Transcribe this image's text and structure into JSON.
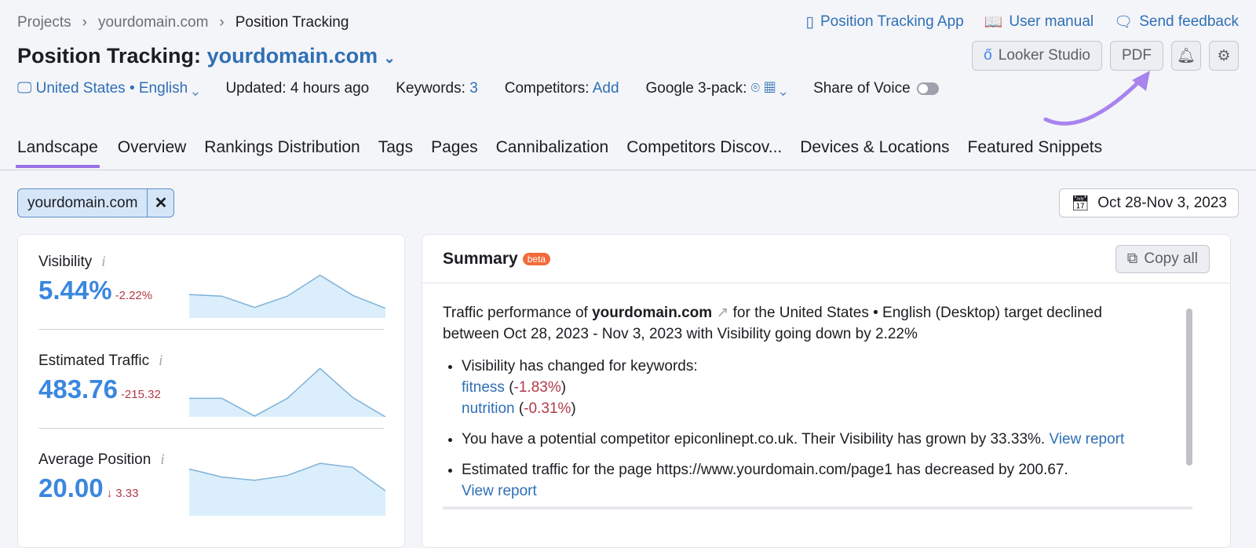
{
  "breadcrumb": [
    "Projects",
    "yourdomain.com",
    "Position Tracking"
  ],
  "header": {
    "title_prefix": "Position Tracking:",
    "domain": "yourdomain.com"
  },
  "top_links": {
    "app": "Position Tracking App",
    "manual": "User manual",
    "feedback": "Send feedback"
  },
  "buttons": {
    "looker": "Looker Studio",
    "pdf": "PDF"
  },
  "meta": {
    "location": "United States • English",
    "updated": "Updated: 4 hours ago",
    "keywords_label": "Keywords:",
    "keywords_value": "3",
    "competitors_label": "Competitors:",
    "competitors_value": "Add",
    "google_pack": "Google 3-pack:",
    "share_of_voice": "Share of Voice",
    "share_of_voice_on": false
  },
  "tabs": [
    "Landscape",
    "Overview",
    "Rankings Distribution",
    "Tags",
    "Pages",
    "Cannibalization",
    "Competitors Discov...",
    "Devices & Locations",
    "Featured Snippets"
  ],
  "filter_chip": "yourdomain.com",
  "date_range": "Oct 28-Nov 3, 2023",
  "metrics": [
    {
      "label": "Visibility",
      "value": "5.44%",
      "delta": "-2.22%",
      "spark": [
        29,
        27,
        13,
        27,
        53,
        28,
        12
      ]
    },
    {
      "label": "Estimated Traffic",
      "value": "483.76",
      "delta": "-215.32",
      "spark": [
        23,
        23,
        1,
        23,
        60,
        24,
        0
      ]
    },
    {
      "label": "Average Position",
      "value": "20.00",
      "delta": "↓ 3.33",
      "spark": [
        58,
        48,
        44,
        50,
        65,
        60,
        31
      ]
    }
  ],
  "summary": {
    "title": "Summary",
    "badge": "beta",
    "copy_all": "Copy all",
    "intro_1": "Traffic performance of",
    "intro_domain": "yourdomain.com",
    "intro_2": "for the United States • English (Desktop) target declined between Oct 28, 2023 - Nov 3, 2023 with Visibility going down by 2.22%",
    "b1": "Visibility has changed for keywords:",
    "kw1": "fitness",
    "kw1_delta": "-1.83%",
    "kw2": "nutrition",
    "kw2_delta": "-0.31%",
    "b2": "You have a potential competitor epiconlinept.co.uk. Their Visibility has grown by 33.33%.",
    "b3": "Estimated traffic for the page https://www.yourdomain.com/page1 has decreased by 200.67.",
    "view_report": "View report"
  },
  "colors": {
    "accent": "#2f6fb5",
    "metric": "#3a87df",
    "negative": "#b23a48",
    "tab_underline": "#9a72e8",
    "spark_fill": "#dbeefc",
    "spark_line": "#7fb2d6"
  }
}
